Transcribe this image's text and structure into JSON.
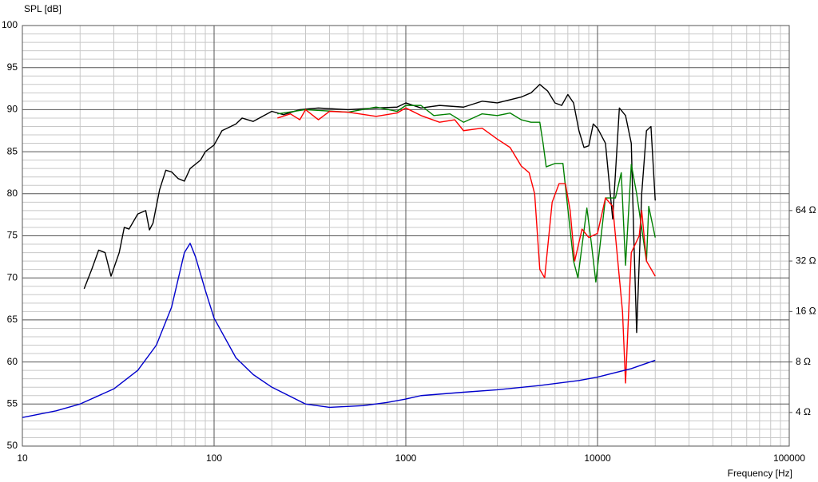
{
  "chart_data": {
    "type": "line",
    "y_label": "SPL [dB]",
    "x_label": "Frequency [Hz]",
    "xlim": [
      10,
      100000
    ],
    "xticks": [
      10,
      100,
      1000,
      10000,
      100000
    ],
    "xlog": true,
    "ylim": [
      50,
      100
    ],
    "yticks": [
      50,
      55,
      60,
      65,
      70,
      75,
      80,
      85,
      90,
      95,
      100
    ],
    "y2lim": [
      2.52,
      812
    ],
    "y2log": true,
    "y2ticks": [
      {
        "value": 4,
        "label": "4 Ω"
      },
      {
        "value": 8,
        "label": "8 Ω"
      },
      {
        "value": 16,
        "label": "16 Ω"
      },
      {
        "value": 32,
        "label": "32 Ω"
      },
      {
        "value": 64,
        "label": "64 Ω"
      }
    ],
    "grid": true,
    "series": [
      {
        "color": "#000000",
        "x": [
          21,
          23,
          25,
          27,
          29,
          32,
          34,
          36,
          40,
          44,
          46,
          48,
          52,
          56,
          60,
          65,
          70,
          75,
          85,
          90,
          100,
          110,
          130,
          140,
          160,
          200,
          230,
          280,
          350,
          500,
          700,
          900,
          1000,
          1200,
          1500,
          2000,
          2500,
          3000,
          4000,
          4500,
          5000,
          5500,
          6000,
          6500,
          7000,
          7500,
          8000,
          8500,
          9000,
          9500,
          10000,
          11000,
          12000,
          13000,
          14000,
          15000,
          15500,
          16000,
          17000,
          18000,
          19000,
          20000
        ],
        "values": [
          68.7,
          71,
          73.3,
          73,
          70.2,
          73,
          76,
          75.8,
          77.6,
          78,
          75.7,
          76.5,
          80.5,
          82.8,
          82.6,
          81.8,
          81.5,
          83,
          84,
          85,
          85.8,
          87.5,
          88.3,
          89,
          88.6,
          89.8,
          89.4,
          90,
          90.2,
          90,
          90.2,
          90.3,
          90.8,
          90.2,
          90.5,
          90.3,
          91,
          90.8,
          91.5,
          92,
          93,
          92.2,
          90.8,
          90.5,
          91.8,
          90.8,
          87.5,
          85.5,
          85.7,
          88.3,
          87.8,
          86,
          77,
          90.2,
          89.3,
          86,
          74,
          63.5,
          80,
          87.5,
          88,
          79.2
        ]
      },
      {
        "color": "#008000",
        "x": [
          214,
          300,
          500,
          700,
          900,
          1000,
          1200,
          1400,
          1700,
          2000,
          2500,
          3000,
          3500,
          4000,
          4500,
          5000,
          5200,
          5400,
          6000,
          6600,
          7500,
          7900,
          8800,
          9300,
          9800,
          11000,
          12400,
          13300,
          14000,
          15000,
          16000,
          18000,
          18500,
          20000
        ],
        "values": [
          89.5,
          90,
          89.7,
          90.3,
          89.8,
          90.5,
          90.5,
          89.3,
          89.5,
          88.5,
          89.5,
          89.3,
          89.6,
          88.8,
          88.5,
          88.5,
          86,
          83.2,
          83.6,
          83.6,
          72,
          70,
          78.3,
          74,
          69.5,
          79.5,
          79.5,
          82.5,
          71.5,
          83.5,
          80,
          72,
          78.5,
          74.8
        ]
      },
      {
        "color": "#ff0000",
        "x": [
          214,
          250,
          280,
          300,
          350,
          400,
          500,
          700,
          900,
          1000,
          1200,
          1500,
          1800,
          2000,
          2500,
          3000,
          3500,
          4000,
          4400,
          4700,
          5000,
          5300,
          5800,
          6300,
          6800,
          7200,
          7600,
          8300,
          9000,
          10000,
          11000,
          12000,
          13500,
          14000,
          15000,
          16500,
          17000,
          18000,
          20000
        ],
        "values": [
          89,
          89.5,
          88.8,
          90,
          88.8,
          89.8,
          89.7,
          89.2,
          89.6,
          90.2,
          89.3,
          88.5,
          88.8,
          87.5,
          87.8,
          86.5,
          85.5,
          83.3,
          82.5,
          80,
          71,
          70,
          79,
          81.2,
          81.2,
          78,
          72,
          75.8,
          74.8,
          75.3,
          79.5,
          78.5,
          66,
          57.5,
          73,
          75,
          78,
          72,
          70.2
        ]
      },
      {
        "color": "#0000cc",
        "axis": "y2",
        "x": [
          10,
          15,
          20,
          30,
          40,
          50,
          60,
          70,
          75,
          80,
          90,
          100,
          130,
          160,
          200,
          300,
          400,
          600,
          800,
          1000,
          1200,
          2000,
          3000,
          5000,
          8000,
          10000,
          15000,
          20000
        ],
        "values": [
          3.73,
          4.09,
          4.49,
          5.53,
          7.13,
          10.08,
          16.96,
          35.9,
          40.8,
          33.9,
          21.4,
          14.6,
          8.47,
          6.73,
          5.66,
          4.49,
          4.29,
          4.39,
          4.59,
          4.81,
          5.04,
          5.28,
          5.46,
          5.79,
          6.2,
          6.5,
          7.3,
          8.19
        ]
      }
    ]
  }
}
